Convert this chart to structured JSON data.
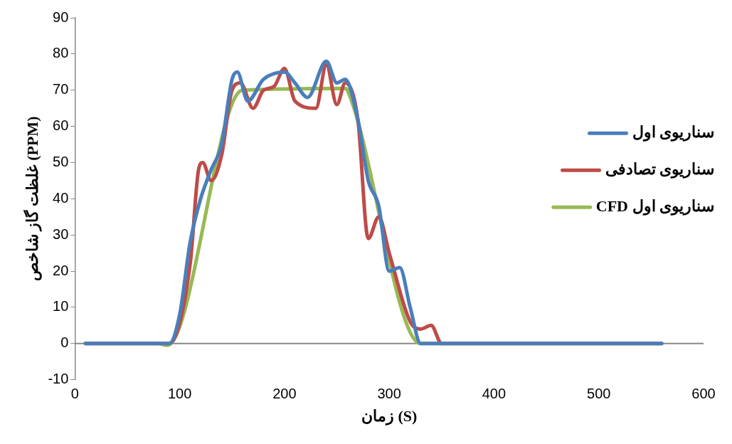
{
  "chart_data": {
    "type": "line",
    "xlabel": "زمان (S)",
    "ylabel": "غلظت گاز شاخص (PPM)",
    "xlim": [
      0,
      600
    ],
    "xticks": [
      0,
      100,
      200,
      300,
      400,
      500,
      600
    ],
    "ylim": [
      -10,
      90
    ],
    "yticks": [
      -10,
      0,
      10,
      20,
      30,
      40,
      50,
      60,
      70,
      80,
      90
    ],
    "grid": false,
    "ref_lines": [
      {
        "axis": "y",
        "value": 0,
        "color": "#888888"
      }
    ],
    "legend": "right",
    "marker": "none",
    "line_style": "solid",
    "series": [
      {
        "name": "سناریوی اول",
        "color": "#4a7ebb",
        "x": [
          10,
          80,
          90,
          100,
          110,
          120,
          130,
          140,
          150,
          155,
          165,
          180,
          200,
          210,
          222,
          240,
          250,
          258,
          270,
          280,
          290,
          300,
          310,
          320,
          330,
          340,
          560
        ],
        "values": [
          0,
          0,
          0,
          8,
          28,
          40,
          48,
          55,
          73,
          75,
          67,
          73,
          75,
          72,
          68,
          78,
          72,
          73,
          62,
          45,
          38,
          20,
          21,
          10,
          0,
          0,
          0
        ]
      },
      {
        "name": "سناریوی تصادفی",
        "color": "#be4b48",
        "x": [
          10,
          80,
          90,
          110,
          118,
          122,
          130,
          140,
          150,
          158,
          170,
          180,
          190,
          200,
          210,
          230,
          240,
          250,
          258,
          270,
          280,
          290,
          300,
          320,
          330,
          340,
          350,
          560
        ],
        "values": [
          0,
          0,
          0,
          22,
          48,
          50,
          45,
          52,
          70,
          72,
          65,
          70,
          71,
          76,
          67,
          65,
          77,
          66,
          72,
          62,
          29,
          35,
          25,
          6,
          4,
          5,
          0,
          0
        ]
      },
      {
        "name": "سناریوی اول CFD",
        "color": "#98b954",
        "x": [
          10,
          80,
          88,
          160,
          258,
          260,
          330,
          340,
          560
        ],
        "values": [
          0,
          0,
          -0.5,
          70,
          70.5,
          70,
          0,
          0,
          0
        ]
      }
    ]
  }
}
